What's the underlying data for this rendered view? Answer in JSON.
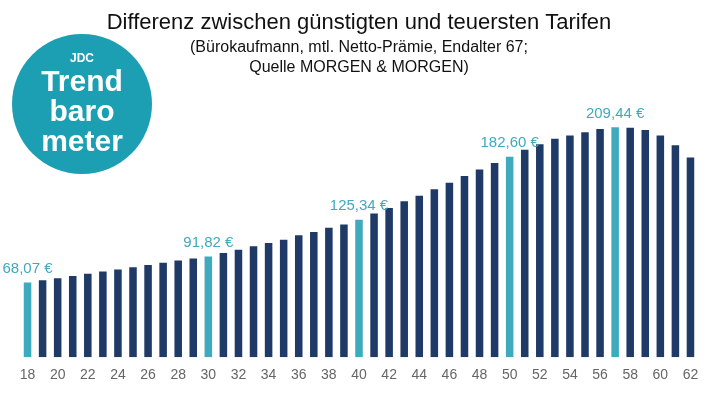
{
  "chart_data": {
    "type": "bar",
    "title": "Differenz zwischen günstigten und teuersten Tarifen",
    "subtitle": [
      "(Bürokaufmann, mtl. Netto-Prämie, Endalter 67;",
      "Quelle MORGEN & MORGEN)"
    ],
    "logo": [
      "JDC",
      "Trend",
      "baro",
      "meter"
    ],
    "categories": [
      "18",
      null,
      "20",
      null,
      "22",
      null,
      "24",
      null,
      "26",
      null,
      "28",
      null,
      "30",
      null,
      "32",
      null,
      "34",
      null,
      "36",
      null,
      "38",
      null,
      "40",
      null,
      "42",
      null,
      "44",
      null,
      "46",
      null,
      "48",
      null,
      "50",
      null,
      "52",
      null,
      "54",
      null,
      "56",
      null,
      "58",
      null,
      "60",
      null,
      "62"
    ],
    "values": [
      68.07,
      70,
      72,
      74,
      76,
      78,
      80,
      82,
      84,
      86,
      88,
      90,
      91.82,
      95,
      98,
      101,
      104,
      107,
      111,
      114,
      118,
      121,
      125.34,
      131,
      136,
      142,
      147,
      153,
      159,
      165,
      171,
      177,
      182.6,
      189,
      194,
      199,
      202,
      205,
      208,
      209.44,
      209,
      207,
      202,
      193,
      182
    ],
    "value_labels": [
      "68,07 €",
      null,
      null,
      null,
      null,
      null,
      null,
      null,
      null,
      null,
      null,
      null,
      "91,82 €",
      null,
      null,
      null,
      null,
      null,
      null,
      null,
      null,
      null,
      "125,34 €",
      null,
      null,
      null,
      null,
      null,
      null,
      null,
      null,
      null,
      "182,60 €",
      null,
      null,
      null,
      null,
      null,
      null,
      "209,44 €",
      null,
      null,
      null,
      null,
      null
    ],
    "colors": [
      "#3fa9bd",
      "#1f3a66",
      "#1f3a66",
      "#1f3a66",
      "#1f3a66",
      "#1f3a66",
      "#1f3a66",
      "#1f3a66",
      "#1f3a66",
      "#1f3a66",
      "#1f3a66",
      "#1f3a66",
      "#3fa9bd",
      "#1f3a66",
      "#1f3a66",
      "#1f3a66",
      "#1f3a66",
      "#1f3a66",
      "#1f3a66",
      "#1f3a66",
      "#1f3a66",
      "#1f3a66",
      "#3fa9bd",
      "#1f3a66",
      "#1f3a66",
      "#1f3a66",
      "#1f3a66",
      "#1f3a66",
      "#1f3a66",
      "#1f3a66",
      "#1f3a66",
      "#1f3a66",
      "#3fa9bd",
      "#1f3a66",
      "#1f3a66",
      "#1f3a66",
      "#1f3a66",
      "#1f3a66",
      "#1f3a66",
      "#3fa9bd",
      "#1f3a66",
      "#1f3a66",
      "#1f3a66",
      "#1f3a66",
      "#1f3a66"
    ],
    "ylim": [
      0,
      250
    ],
    "grid": false,
    "data_labels": true,
    "tick_labels": "x"
  }
}
